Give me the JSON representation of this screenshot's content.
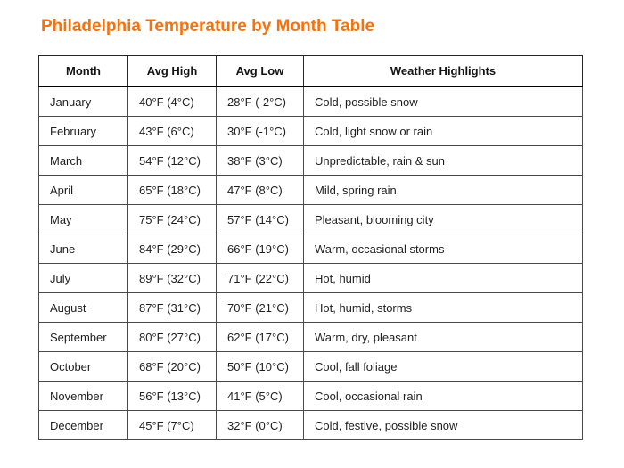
{
  "page": {
    "title": "Philadelphia Temperature by Month Table"
  },
  "colors": {
    "title": "#f7720e",
    "outer_border": "#262626",
    "inner_border": "#4a4a4a",
    "header_rule": "#000000",
    "text": "#1f1f1f"
  },
  "chart_data": {
    "type": "table",
    "title": "Philadelphia Temperature by Month Table",
    "columns": [
      "Month",
      "Avg High",
      "Avg Low",
      "Weather Highlights"
    ],
    "rows": [
      [
        "January",
        "40°F (4°C)",
        "28°F (-2°C)",
        "Cold, possible snow"
      ],
      [
        "February",
        "43°F (6°C)",
        "30°F (-1°C)",
        "Cold, light snow or rain"
      ],
      [
        "March",
        "54°F (12°C)",
        "38°F (3°C)",
        "Unpredictable, rain & sun"
      ],
      [
        "April",
        "65°F (18°C)",
        "47°F (8°C)",
        "Mild, spring rain"
      ],
      [
        "May",
        "75°F (24°C)",
        "57°F (14°C)",
        "Pleasant, blooming city"
      ],
      [
        "June",
        "84°F (29°C)",
        "66°F (19°C)",
        "Warm, occasional storms"
      ],
      [
        "July",
        "89°F (32°C)",
        "71°F (22°C)",
        "Hot, humid"
      ],
      [
        "August",
        "87°F (31°C)",
        "70°F (21°C)",
        "Hot, humid, storms"
      ],
      [
        "September",
        "80°F (27°C)",
        "62°F (17°C)",
        "Warm, dry, pleasant"
      ],
      [
        "October",
        "68°F (20°C)",
        "50°F (10°C)",
        "Cool, fall foliage"
      ],
      [
        "November",
        "56°F (13°C)",
        "41°F (5°C)",
        "Cool, occasional rain"
      ],
      [
        "December",
        "45°F (7°C)",
        "32°F (0°C)",
        "Cold, festive, possible snow"
      ]
    ],
    "column_cell_names": [
      "month",
      "avg-high",
      "avg-low",
      "highlights"
    ]
  }
}
